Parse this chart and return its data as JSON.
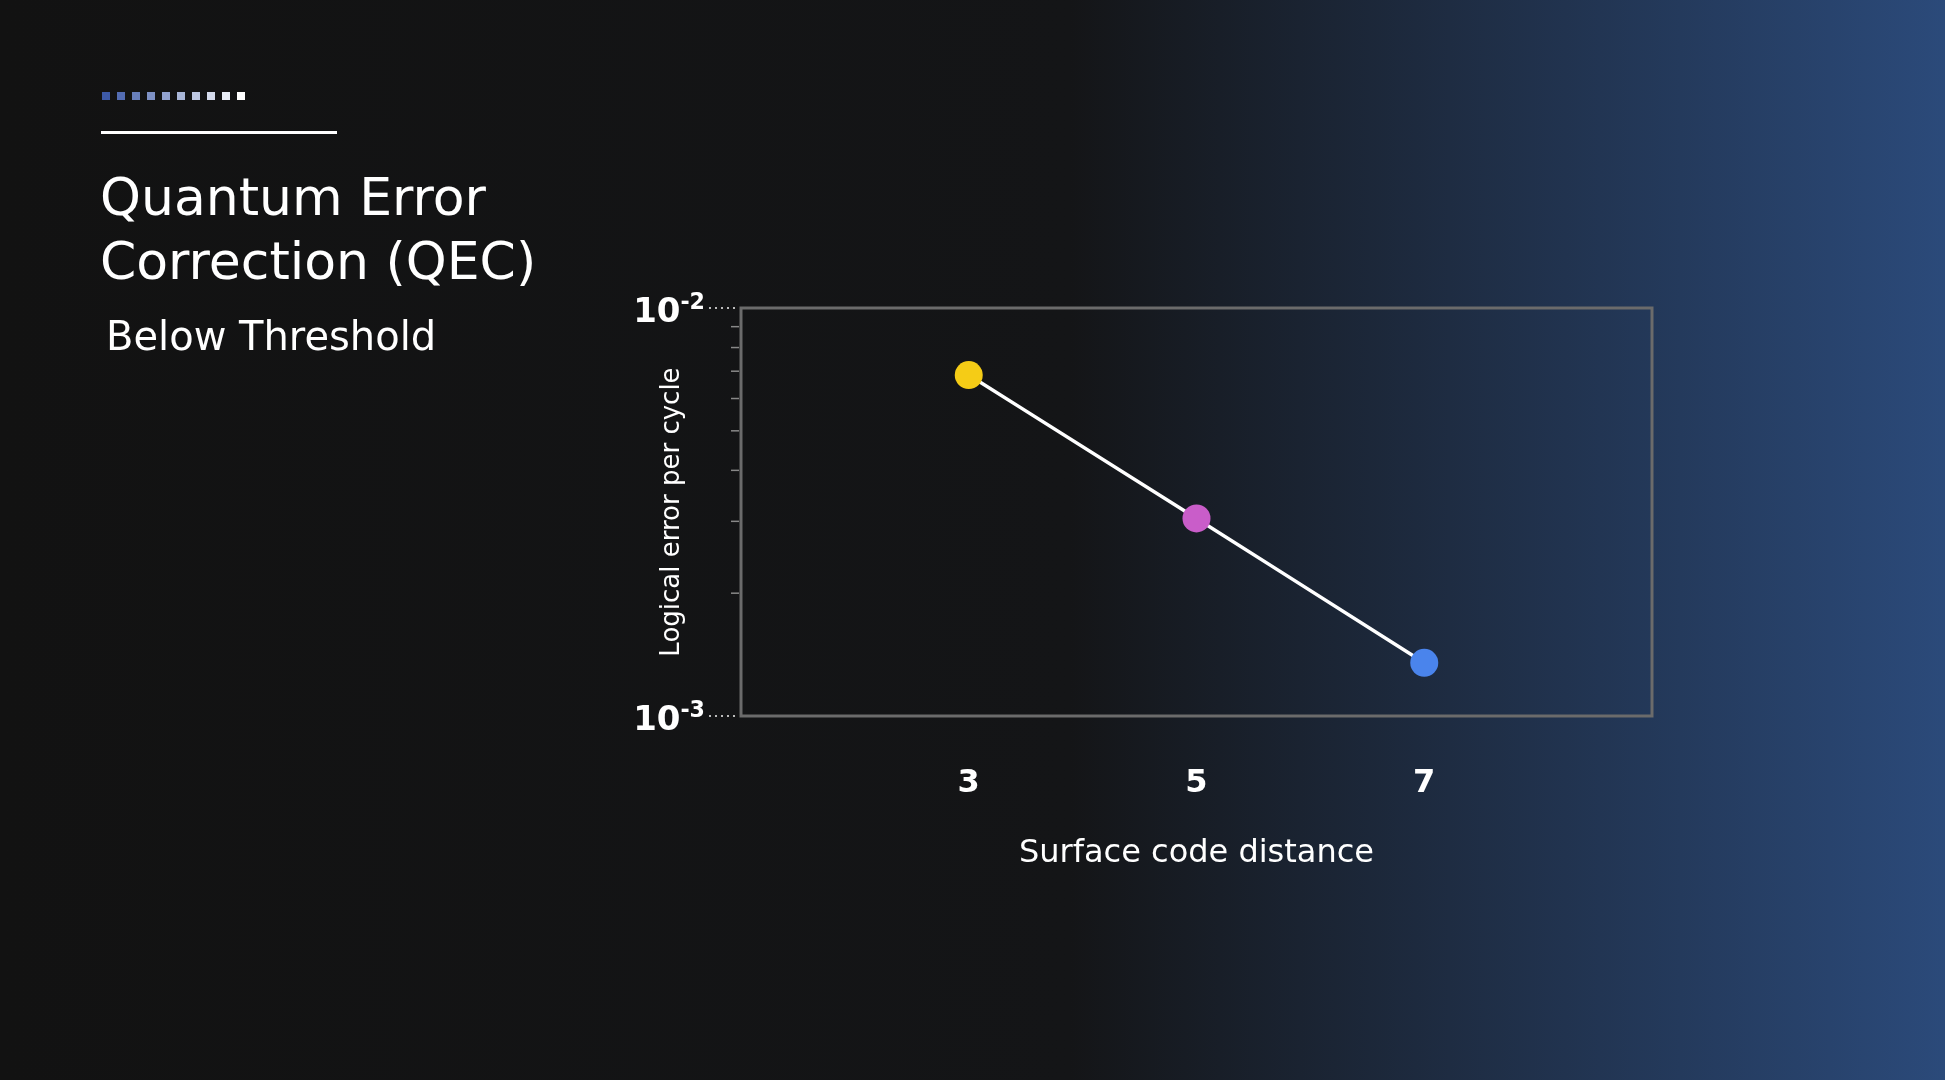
{
  "chart_data": {
    "type": "line",
    "title": "Quantum Error Correction (QEC)",
    "subtitle": "Below Threshold",
    "xlabel": "Surface code distance",
    "ylabel": "Logical error per cycle",
    "x": [
      3,
      5,
      7
    ],
    "values": [
      0.00685,
      0.00305,
      0.00135
    ],
    "color": "#ffffff",
    "colors": [
      "#f5cc16",
      "#c95dc9",
      "#4a84ec"
    ],
    "marker": "circle",
    "log": "y",
    "grid": false,
    "xlim": [
      1,
      9
    ],
    "xticks": [
      3,
      5,
      7
    ],
    "ylim": [
      0.001,
      0.01
    ],
    "yticks": [
      {
        "value": 0.001,
        "label": "10$^{-3}$"
      },
      {
        "value": 0.002,
        "label": null
      },
      {
        "value": 0.003,
        "label": null
      },
      {
        "value": 0.004,
        "label": null
      },
      {
        "value": 0.005,
        "label": null
      },
      {
        "value": 0.006,
        "label": null
      },
      {
        "value": 0.007,
        "label": null
      },
      {
        "value": 0.008,
        "label": null
      },
      {
        "value": 0.009,
        "label": null
      },
      {
        "value": 0.01,
        "label": "10$^{-2}$"
      }
    ]
  }
}
